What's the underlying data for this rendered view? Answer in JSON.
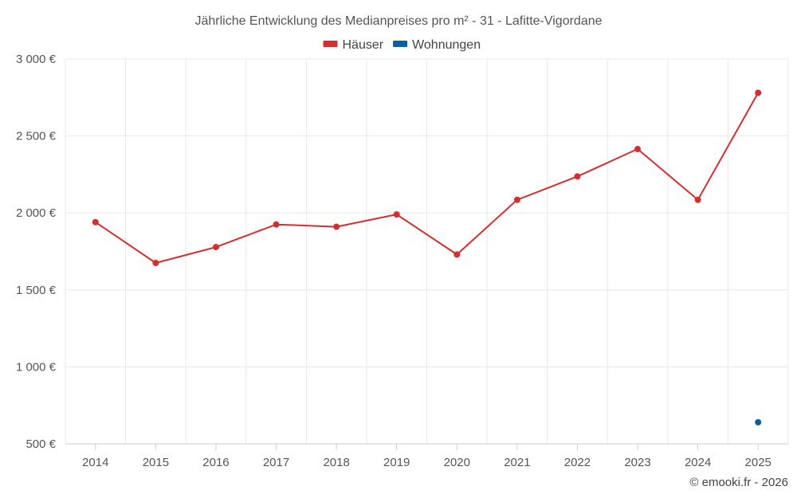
{
  "chart_data": {
    "type": "line",
    "title": "Jährliche Entwicklung des Medianpreises pro m² - 31 - Lafitte-Vigordane",
    "xlabel": "",
    "ylabel": "",
    "categories": [
      "2014",
      "2015",
      "2016",
      "2017",
      "2018",
      "2019",
      "2020",
      "2021",
      "2022",
      "2023",
      "2024",
      "2025"
    ],
    "ylim": [
      500,
      3000
    ],
    "yticks": [
      500,
      1000,
      1500,
      2000,
      2500,
      3000
    ],
    "ytick_labels": [
      "500 €",
      "1 000 €",
      "1 500 €",
      "2 000 €",
      "2 500 €",
      "3 000 €"
    ],
    "grid": true,
    "legend_position": "top-center",
    "series": [
      {
        "name": "Häuser",
        "color": "#d32f2f",
        "values": [
          1940,
          1675,
          1778,
          1925,
          1910,
          1990,
          1730,
          2085,
          2237,
          2415,
          2085,
          2780
        ]
      },
      {
        "name": "Wohnungen",
        "color": "#0d5f9e",
        "values": [
          null,
          null,
          null,
          null,
          null,
          null,
          null,
          null,
          null,
          null,
          null,
          640
        ]
      }
    ]
  },
  "credit": "© emooki.fr - 2026"
}
